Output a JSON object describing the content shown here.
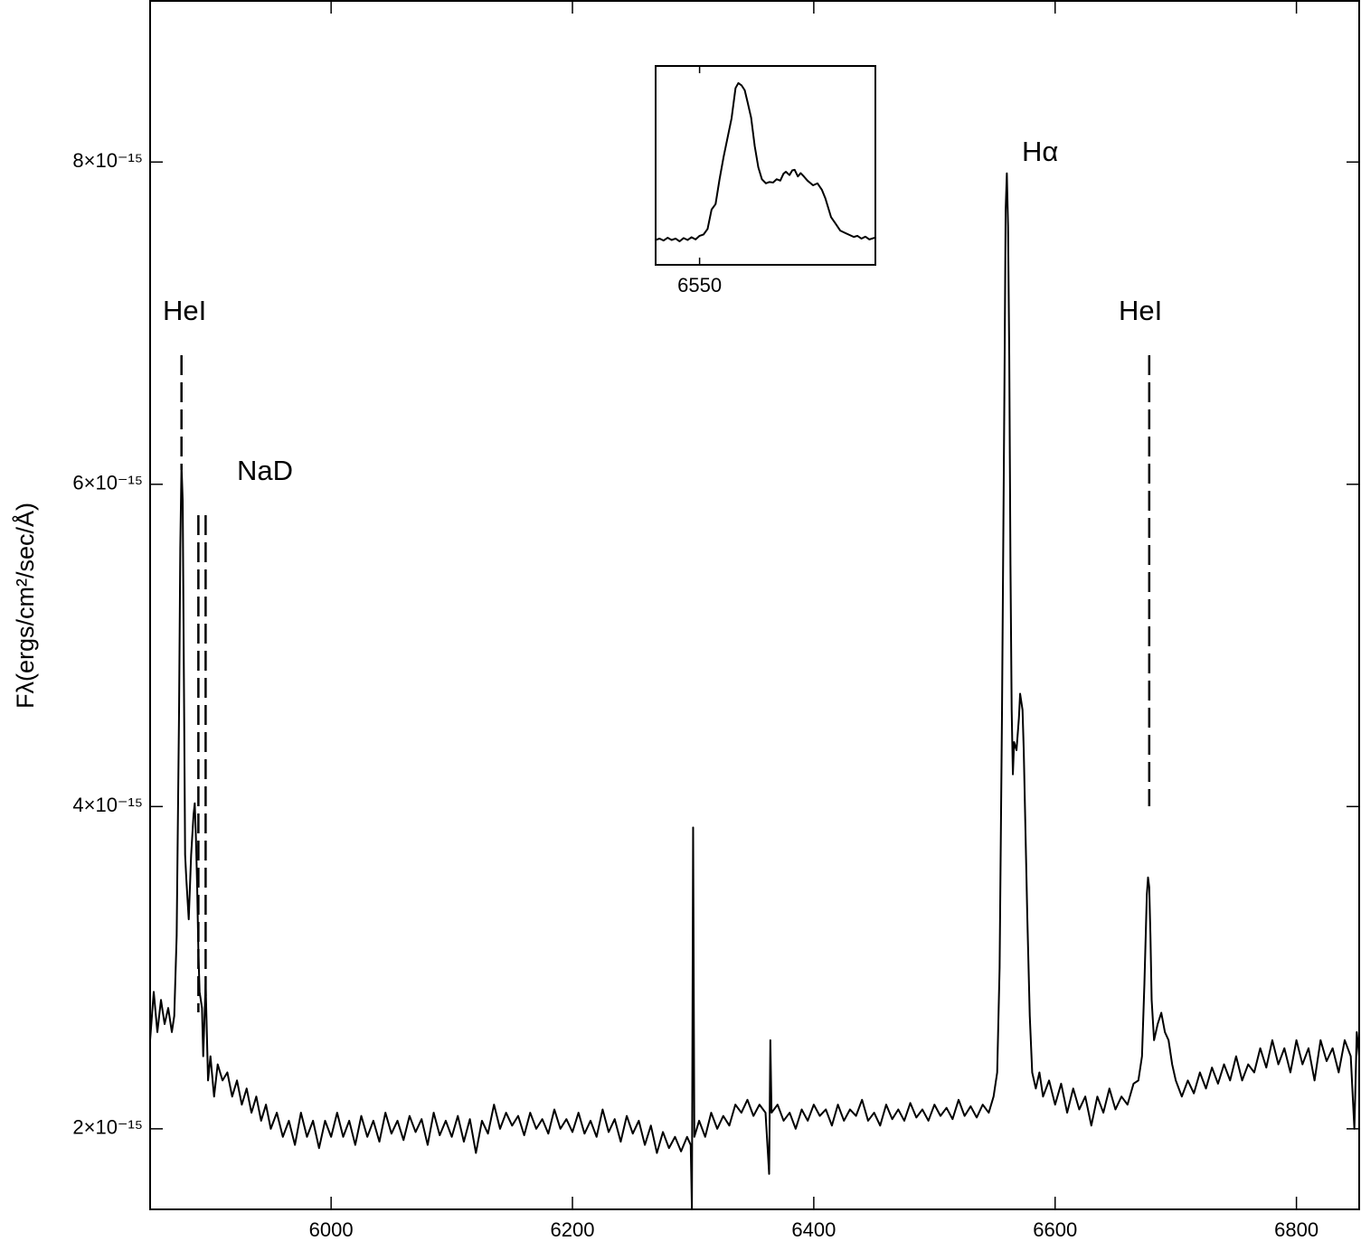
{
  "chart_data": {
    "type": "line",
    "color": "#000000",
    "ylabel": "Fλ(ergs/cm²/sec/Å)",
    "xlim": [
      5850,
      6852
    ],
    "ylim": [
      1.5e-15,
      9e-15
    ],
    "xticks": [
      6000,
      6200,
      6400,
      6600,
      6800
    ],
    "yticks": [
      {
        "value": 2e-15,
        "label": "2×10⁻¹⁵"
      },
      {
        "value": 4e-15,
        "label": "4×10⁻¹⁵"
      },
      {
        "value": 6e-15,
        "label": "6×10⁻¹⁵"
      },
      {
        "value": 8e-15,
        "label": "8×10⁻¹⁵"
      }
    ],
    "x": [
      5850,
      5853,
      5856,
      5859,
      5862,
      5865,
      5868,
      5870,
      5872,
      5874,
      5875,
      5876,
      5877,
      5878,
      5879,
      5880,
      5882,
      5884,
      5886,
      5887,
      5888,
      5889,
      5890,
      5891,
      5893,
      5894,
      5896,
      5898,
      5900,
      5903,
      5906,
      5910,
      5914,
      5918,
      5922,
      5926,
      5930,
      5934,
      5938,
      5942,
      5946,
      5950,
      5955,
      5960,
      5965,
      5970,
      5975,
      5980,
      5985,
      5990,
      5995,
      6000,
      6005,
      6010,
      6015,
      6020,
      6025,
      6030,
      6035,
      6040,
      6045,
      6050,
      6055,
      6060,
      6065,
      6070,
      6075,
      6080,
      6085,
      6090,
      6095,
      6100,
      6105,
      6110,
      6115,
      6120,
      6125,
      6130,
      6135,
      6140,
      6145,
      6150,
      6155,
      6160,
      6165,
      6170,
      6175,
      6180,
      6185,
      6190,
      6195,
      6200,
      6205,
      6210,
      6215,
      6220,
      6225,
      6230,
      6235,
      6240,
      6245,
      6250,
      6255,
      6260,
      6265,
      6270,
      6275,
      6280,
      6285,
      6290,
      6295,
      6298,
      6299,
      6300,
      6301,
      6305,
      6310,
      6315,
      6320,
      6325,
      6330,
      6335,
      6340,
      6345,
      6350,
      6355,
      6360,
      6363,
      6364,
      6365,
      6370,
      6375,
      6380,
      6385,
      6390,
      6395,
      6400,
      6405,
      6410,
      6415,
      6420,
      6425,
      6430,
      6435,
      6440,
      6445,
      6450,
      6455,
      6460,
      6465,
      6470,
      6475,
      6480,
      6485,
      6490,
      6495,
      6500,
      6505,
      6510,
      6515,
      6520,
      6525,
      6530,
      6535,
      6540,
      6545,
      6549,
      6552,
      6554,
      6556,
      6558,
      6559,
      6560,
      6561,
      6562,
      6563,
      6564,
      6565,
      6566,
      6568,
      6570,
      6571,
      6573,
      6574,
      6575,
      6577,
      6579,
      6581,
      6584,
      6587,
      6590,
      6595,
      6600,
      6605,
      6610,
      6615,
      6620,
      6625,
      6630,
      6635,
      6640,
      6645,
      6650,
      6655,
      6660,
      6665,
      6669,
      6672,
      6674,
      6676,
      6677,
      6678,
      6679,
      6680,
      6682,
      6685,
      6688,
      6691,
      6694,
      6697,
      6700,
      6705,
      6710,
      6715,
      6720,
      6725,
      6730,
      6735,
      6740,
      6745,
      6750,
      6755,
      6760,
      6765,
      6770,
      6775,
      6780,
      6785,
      6790,
      6795,
      6800,
      6805,
      6810,
      6815,
      6820,
      6825,
      6830,
      6835,
      6840,
      6845,
      6848,
      6850,
      6852
    ],
    "values": [
      2.55e-15,
      2.85e-15,
      2.6e-15,
      2.8e-15,
      2.65e-15,
      2.75e-15,
      2.6e-15,
      2.7e-15,
      3.2e-15,
      4.6e-15,
      5.6e-15,
      6.12e-15,
      5.9e-15,
      4.8e-15,
      3.7e-15,
      3.55e-15,
      3.3e-15,
      3.7e-15,
      3.95e-15,
      4.02e-15,
      3.8e-15,
      3.5e-15,
      3.1e-15,
      2.85e-15,
      2.75e-15,
      2.45e-15,
      2.9e-15,
      2.3e-15,
      2.45e-15,
      2.2e-15,
      2.4e-15,
      2.3e-15,
      2.35e-15,
      2.2e-15,
      2.3e-15,
      2.15e-15,
      2.25e-15,
      2.1e-15,
      2.2e-15,
      2.05e-15,
      2.15e-15,
      2e-15,
      2.1e-15,
      1.95e-15,
      2.05e-15,
      1.9e-15,
      2.1e-15,
      1.95e-15,
      2.05e-15,
      1.88e-15,
      2.05e-15,
      1.95e-15,
      2.1e-15,
      1.95e-15,
      2.05e-15,
      1.9e-15,
      2.08e-15,
      1.95e-15,
      2.05e-15,
      1.92e-15,
      2.1e-15,
      1.97e-15,
      2.05e-15,
      1.93e-15,
      2.08e-15,
      1.98e-15,
      2.06e-15,
      1.9e-15,
      2.1e-15,
      1.96e-15,
      2.05e-15,
      1.95e-15,
      2.08e-15,
      1.92e-15,
      2.06e-15,
      1.85e-15,
      2.05e-15,
      1.97e-15,
      2.15e-15,
      2e-15,
      2.1e-15,
      2.02e-15,
      2.08e-15,
      1.96e-15,
      2.1e-15,
      2e-15,
      2.06e-15,
      1.97e-15,
      2.12e-15,
      2e-15,
      2.06e-15,
      1.98e-15,
      2.1e-15,
      1.97e-15,
      2.05e-15,
      1.95e-15,
      2.12e-15,
      1.98e-15,
      2.06e-15,
      1.92e-15,
      2.08e-15,
      1.97e-15,
      2.05e-15,
      1.9e-15,
      2.02e-15,
      1.85e-15,
      1.98e-15,
      1.88e-15,
      1.95e-15,
      1.86e-15,
      1.95e-15,
      1.9e-15,
      1.5e-15,
      3.87e-15,
      1.95e-15,
      2.05e-15,
      1.95e-15,
      2.1e-15,
      2e-15,
      2.08e-15,
      2.02e-15,
      2.15e-15,
      2.1e-15,
      2.18e-15,
      2.08e-15,
      2.15e-15,
      2.1e-15,
      1.72e-15,
      2.55e-15,
      2.1e-15,
      2.15e-15,
      2.05e-15,
      2.1e-15,
      2e-15,
      2.12e-15,
      2.05e-15,
      2.15e-15,
      2.08e-15,
      2.12e-15,
      2.02e-15,
      2.15e-15,
      2.05e-15,
      2.12e-15,
      2.08e-15,
      2.18e-15,
      2.05e-15,
      2.1e-15,
      2.02e-15,
      2.15e-15,
      2.06e-15,
      2.12e-15,
      2.05e-15,
      2.16e-15,
      2.07e-15,
      2.12e-15,
      2.05e-15,
      2.15e-15,
      2.08e-15,
      2.13e-15,
      2.06e-15,
      2.18e-15,
      2.08e-15,
      2.14e-15,
      2.07e-15,
      2.15e-15,
      2.1e-15,
      2.2e-15,
      2.35e-15,
      3e-15,
      4.6e-15,
      6.6e-15,
      7.7e-15,
      7.93e-15,
      7.6e-15,
      6.8e-15,
      5.5e-15,
      4.6e-15,
      4.2e-15,
      4.4e-15,
      4.35e-15,
      4.55e-15,
      4.7e-15,
      4.6e-15,
      4.35e-15,
      4e-15,
      3.3e-15,
      2.7e-15,
      2.35e-15,
      2.25e-15,
      2.35e-15,
      2.2e-15,
      2.3e-15,
      2.15e-15,
      2.28e-15,
      2.1e-15,
      2.25e-15,
      2.12e-15,
      2.2e-15,
      2.02e-15,
      2.2e-15,
      2.1e-15,
      2.25e-15,
      2.12e-15,
      2.2e-15,
      2.15e-15,
      2.28e-15,
      2.3e-15,
      2.45e-15,
      2.9e-15,
      3.45e-15,
      3.56e-15,
      3.5e-15,
      3.2e-15,
      2.8e-15,
      2.55e-15,
      2.65e-15,
      2.72e-15,
      2.6e-15,
      2.55e-15,
      2.4e-15,
      2.3e-15,
      2.2e-15,
      2.3e-15,
      2.22e-15,
      2.35e-15,
      2.25e-15,
      2.38e-15,
      2.28e-15,
      2.4e-15,
      2.3e-15,
      2.45e-15,
      2.3e-15,
      2.4e-15,
      2.35e-15,
      2.5e-15,
      2.38e-15,
      2.55e-15,
      2.4e-15,
      2.5e-15,
      2.35e-15,
      2.55e-15,
      2.4e-15,
      2.5e-15,
      2.3e-15,
      2.55e-15,
      2.42e-15,
      2.5e-15,
      2.35e-15,
      2.55e-15,
      2.45e-15,
      2e-15,
      2.6e-15,
      2.45e-15
    ],
    "annotations": [
      {
        "text": "HeI",
        "line_x": 5876
      },
      {
        "text": "NaD",
        "line_x": [
          5890,
          5896
        ]
      },
      {
        "text": "Hα"
      },
      {
        "text": "HeI",
        "line_x": 6678
      }
    ],
    "inset": {
      "xlim": [
        6539,
        6594
      ],
      "ylim": [
        1.3e-15,
        8.5e-15
      ],
      "xticks": [
        6550
      ],
      "x": [
        6539,
        6540,
        6541,
        6542,
        6543,
        6544,
        6545,
        6546,
        6547,
        6548,
        6549,
        6550,
        6551,
        6552,
        6553,
        6554,
        6555,
        6556,
        6557,
        6558,
        6559,
        6559.7,
        6560.5,
        6561.3,
        6562,
        6562.9,
        6563.8,
        6564.7,
        6565.6,
        6566.6,
        6567.5,
        6568.4,
        6569.3,
        6570.2,
        6571,
        6571.6,
        6572.5,
        6573.2,
        6573.8,
        6574.6,
        6575.3,
        6576.1,
        6577,
        6578.4,
        6579.5,
        6580.6,
        6581.5,
        6582.9,
        6584,
        6585.2,
        6586.5,
        6588.6,
        6589.5,
        6590.5,
        6591.5,
        6592.5,
        6593.8
      ],
      "values": [
        2.2e-15,
        2.25e-15,
        2.18e-15,
        2.28e-15,
        2.2e-15,
        2.25e-15,
        2.15e-15,
        2.27e-15,
        2.2e-15,
        2.3e-15,
        2.22e-15,
        2.35e-15,
        2.4e-15,
        2.6e-15,
        3.3e-15,
        3.5e-15,
        4.4e-15,
        5.2e-15,
        5.9e-15,
        6.6e-15,
        7.7e-15,
        7.88e-15,
        7.8e-15,
        7.62e-15,
        7.2e-15,
        6.63e-15,
        5.6e-15,
        4.83e-15,
        4.4e-15,
        4.25e-15,
        4.3e-15,
        4.28e-15,
        4.4e-15,
        4.35e-15,
        4.6e-15,
        4.67e-15,
        4.55e-15,
        4.72e-15,
        4.74e-15,
        4.5e-15,
        4.62e-15,
        4.5e-15,
        4.35e-15,
        4.18e-15,
        4.25e-15,
        4.02e-15,
        3.7e-15,
        3.03e-15,
        2.8e-15,
        2.54e-15,
        2.45e-15,
        2.31e-15,
        2.35e-15,
        2.25e-15,
        2.32e-15,
        2.22e-15,
        2.28e-15
      ]
    }
  }
}
